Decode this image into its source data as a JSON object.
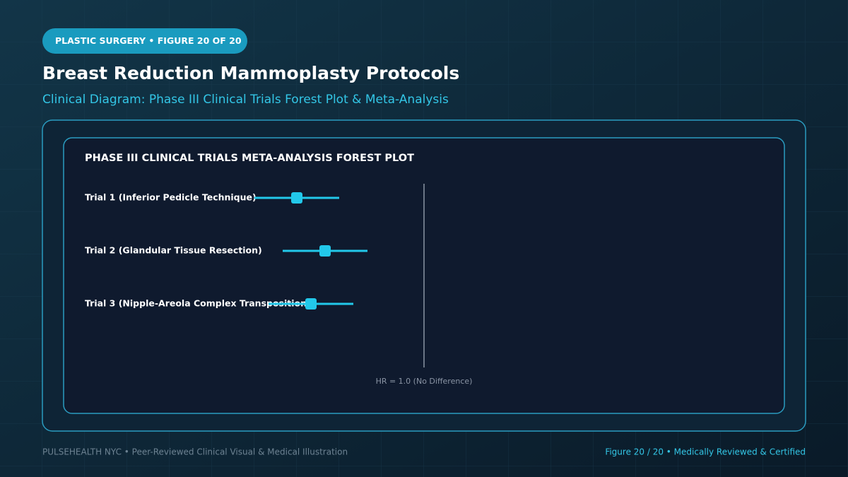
{
  "header": {
    "badge": "PLASTIC SURGERY • FIGURE 20 OF 20",
    "title": "Breast Reduction Mammoplasty Protocols",
    "subtitle": "Clinical Diagram: Phase III Clinical Trials Forest Plot & Meta-Analysis"
  },
  "chart_data": {
    "type": "forest",
    "title": "PHASE III CLINICAL TRIALS META-ANALYSIS FOREST PLOT",
    "categories": [
      "Trial 1 (Inferior Pedicle Technique)",
      "Trial 2 (Glandular Tissue Resection)",
      "Trial 3 (Nipple-Areola Complex Transposition)"
    ],
    "values": [
      0.55,
      0.65,
      0.6
    ],
    "ci_low": [
      0.4,
      0.5,
      0.45
    ],
    "ci_high": [
      0.7,
      0.8,
      0.75
    ],
    "color": "#22c8ea",
    "xlim": [
      0.4,
      1.6
    ],
    "reference_line": {
      "value": 1,
      "label": "HR = 1.0 (No Difference)"
    }
  },
  "footer": {
    "left": "PULSEHEALTH NYC  •  Peer-Reviewed Clinical Visual & Medical Illustration",
    "right": "Figure 20 / 20  •  Medically Reviewed & Certified"
  }
}
